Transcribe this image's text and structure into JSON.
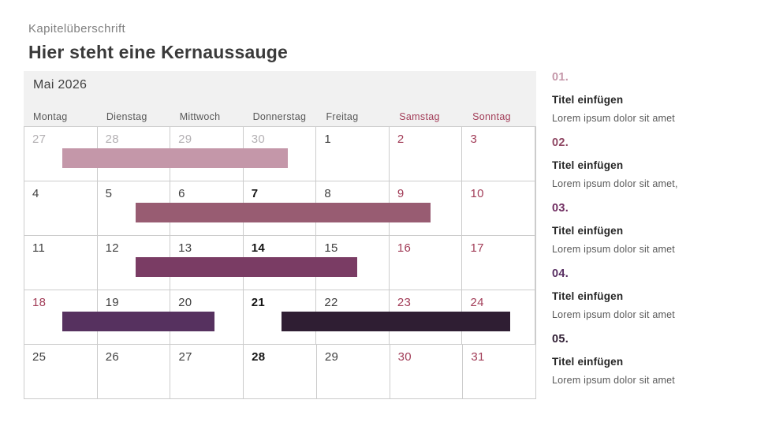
{
  "header": {
    "chapter": "Kapitelüberschrift",
    "title": "Hier steht eine Kernaussauge"
  },
  "calendar": {
    "month_label": "Mai 2026",
    "header_bg": "#f1f1f1",
    "grid_color": "#cccccc",
    "weekend_color": "#a23d58",
    "day_headers": [
      {
        "label": "Montag",
        "weekend": false
      },
      {
        "label": "Dienstag",
        "weekend": false
      },
      {
        "label": "Mittwoch",
        "weekend": false
      },
      {
        "label": "Donnerstag",
        "weekend": false
      },
      {
        "label": "Freitag",
        "weekend": false
      },
      {
        "label": "Samstag",
        "weekend": true
      },
      {
        "label": "Sonntag",
        "weekend": true
      }
    ],
    "weeks": [
      {
        "days": [
          {
            "n": "27",
            "style": "muted"
          },
          {
            "n": "28",
            "style": "muted"
          },
          {
            "n": "29",
            "style": "muted"
          },
          {
            "n": "30",
            "style": "muted"
          },
          {
            "n": "1",
            "style": "normal"
          },
          {
            "n": "2",
            "style": "weekend"
          },
          {
            "n": "3",
            "style": "weekend"
          }
        ],
        "bars": [
          {
            "id": "01",
            "color": "#c497a9",
            "left_pct": 7.4,
            "width_pct": 44.1
          }
        ]
      },
      {
        "days": [
          {
            "n": "4",
            "style": "normal"
          },
          {
            "n": "5",
            "style": "normal"
          },
          {
            "n": "6",
            "style": "normal"
          },
          {
            "n": "7",
            "style": "emphasis"
          },
          {
            "n": "8",
            "style": "normal"
          },
          {
            "n": "9",
            "style": "weekend"
          },
          {
            "n": "10",
            "style": "weekend"
          }
        ],
        "bars": [
          {
            "id": "02",
            "color": "#985c72",
            "left_pct": 21.8,
            "width_pct": 57.7
          }
        ]
      },
      {
        "days": [
          {
            "n": "11",
            "style": "normal"
          },
          {
            "n": "12",
            "style": "normal"
          },
          {
            "n": "13",
            "style": "normal"
          },
          {
            "n": "14",
            "style": "emphasis"
          },
          {
            "n": "15",
            "style": "normal"
          },
          {
            "n": "16",
            "style": "weekend"
          },
          {
            "n": "17",
            "style": "weekend"
          }
        ],
        "bars": [
          {
            "id": "03",
            "color": "#7a3c64",
            "left_pct": 21.8,
            "width_pct": 43.3
          }
        ]
      },
      {
        "days": [
          {
            "n": "18",
            "style": "weekend"
          },
          {
            "n": "19",
            "style": "normal"
          },
          {
            "n": "20",
            "style": "normal"
          },
          {
            "n": "21",
            "style": "emphasis"
          },
          {
            "n": "22",
            "style": "normal"
          },
          {
            "n": "23",
            "style": "weekend"
          },
          {
            "n": "24",
            "style": "weekend"
          }
        ],
        "bars": [
          {
            "id": "04",
            "color": "#56315f",
            "left_pct": 7.4,
            "width_pct": 29.8
          },
          {
            "id": "05",
            "color": "#2f1e33",
            "left_pct": 50.3,
            "width_pct": 44.8
          }
        ]
      },
      {
        "days": [
          {
            "n": "25",
            "style": "normal"
          },
          {
            "n": "26",
            "style": "normal"
          },
          {
            "n": "27",
            "style": "normal"
          },
          {
            "n": "28",
            "style": "emphasis"
          },
          {
            "n": "29",
            "style": "normal"
          },
          {
            "n": "30",
            "style": "weekend"
          },
          {
            "n": "31",
            "style": "weekend"
          }
        ],
        "bars": []
      }
    ]
  },
  "sidebar": {
    "items": [
      {
        "number": "01.",
        "color": "#c497a9",
        "title": "Titel einfügen",
        "text": "Lorem ipsum dolor sit amet"
      },
      {
        "number": "02.",
        "color": "#8e4662",
        "title": "Titel einfügen",
        "text": "Lorem ipsum dolor sit amet,"
      },
      {
        "number": "03.",
        "color": "#6f2c60",
        "title": "Titel einfügen",
        "text": "Lorem ipsum dolor sit amet"
      },
      {
        "number": "04.",
        "color": "#582f62",
        "title": "Titel einfügen",
        "text": "Lorem ipsum dolor sit amet"
      },
      {
        "number": "05.",
        "color": "#2f1e33",
        "title": "Titel einfügen",
        "text": "Lorem ipsum dolor sit amet"
      }
    ]
  }
}
